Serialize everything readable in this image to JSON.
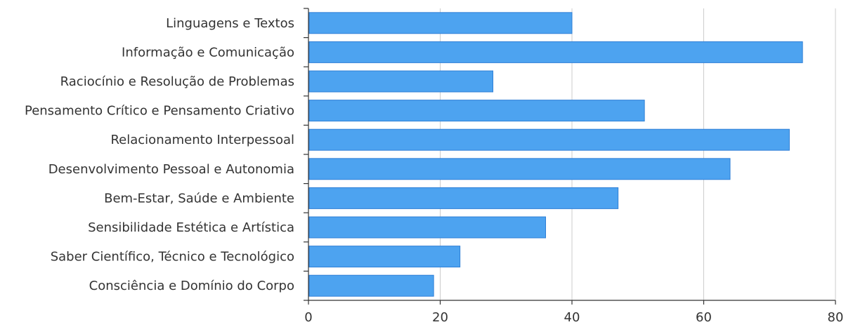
{
  "chart_data": {
    "type": "bar",
    "orientation": "horizontal",
    "title": "",
    "xlabel": "",
    "ylabel": "",
    "categories": [
      "Linguagens e Textos",
      "Informação e Comunicação",
      "Raciocínio e Resolução de Problemas",
      "Pensamento Crítico e Pensamento Criativo",
      "Relacionamento Interpessoal",
      "Desenvolvimento Pessoal e Autonomia",
      "Bem-Estar, Saúde e Ambiente",
      "Sensibilidade Estética e Artística",
      "Saber Científico, Técnico e Tecnológico",
      "Consciência e Domínio do Corpo"
    ],
    "values": [
      40,
      75,
      28,
      51,
      73,
      64,
      47,
      36,
      23,
      19
    ],
    "xlim": [
      0,
      80
    ],
    "xticks": [
      "0",
      "20",
      "40",
      "60",
      "80"
    ],
    "grid": true,
    "bar_color": "#4da3f0"
  }
}
